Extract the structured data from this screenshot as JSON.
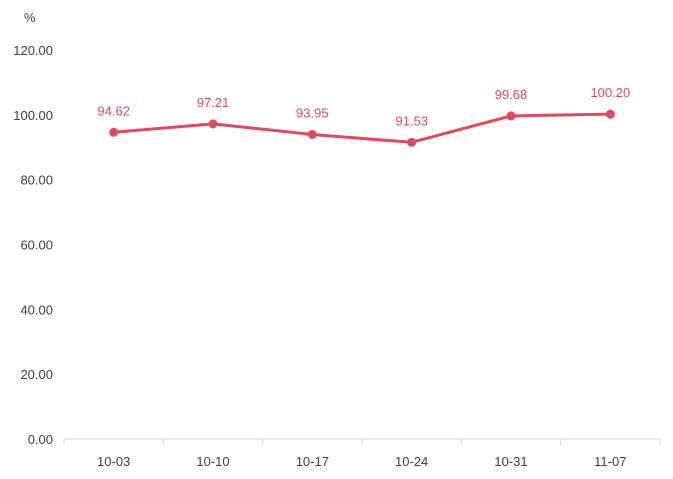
{
  "colors": {
    "series": "#e04a5c",
    "axis": "#d9d9d9",
    "tick_text": "#404040"
  },
  "chart_data": {
    "type": "line",
    "title": "",
    "xlabel": "",
    "ylabel": "%",
    "categories": [
      "10-03",
      "10-10",
      "10-17",
      "10-24",
      "10-31",
      "11-07"
    ],
    "series": [
      {
        "values": [
          94.62,
          97.21,
          93.95,
          91.53,
          99.68,
          100.2
        ],
        "labels": [
          "94.62",
          "97.21",
          "93.95",
          "91.53",
          "99.68",
          "100.20"
        ]
      }
    ],
    "ylim": [
      0,
      120
    ],
    "yticks": [
      "0.00",
      "20.00",
      "40.00",
      "60.00",
      "80.00",
      "100.00",
      "120.00"
    ],
    "grid": false,
    "legend": "none",
    "markers": true,
    "data_labels": true
  }
}
